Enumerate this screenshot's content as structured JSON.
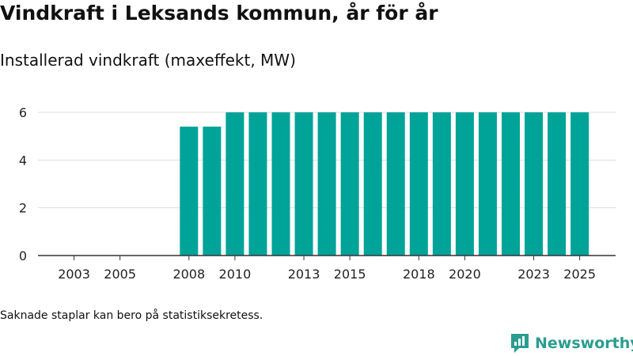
{
  "header": {
    "title": "Vindkraft i Leksands kommun, år för år",
    "subtitle": "Installerad vindkraft (maxeffekt, MW)"
  },
  "footer": {
    "note": "Saknade staplar kan bero på statistiksekretess.",
    "brand": "Newsworthy"
  },
  "colors": {
    "bar": "#00a398",
    "brand": "#2a9d90",
    "grid": "#dddddd",
    "axis": "#333333"
  },
  "chart_data": {
    "type": "bar",
    "title": "Vindkraft i Leksands kommun, år för år",
    "subtitle": "Installerad vindkraft (maxeffekt, MW)",
    "xlabel": "",
    "ylabel": "",
    "ylim": [
      0,
      6
    ],
    "yticks": [
      0,
      2,
      4,
      6
    ],
    "grid": true,
    "categories": [
      2002,
      2003,
      2004,
      2005,
      2006,
      2007,
      2008,
      2009,
      2010,
      2011,
      2012,
      2013,
      2014,
      2015,
      2016,
      2017,
      2018,
      2019,
      2020,
      2021,
      2022,
      2023,
      2024,
      2025
    ],
    "values": [
      0,
      0,
      0,
      0,
      0,
      0,
      5.4,
      5.4,
      6,
      6,
      6,
      6,
      6,
      6,
      6,
      6,
      6,
      6,
      6,
      6,
      6,
      6,
      6,
      6
    ],
    "xtick_labels": [
      "2003",
      "2005",
      "2008",
      "2010",
      "2013",
      "2015",
      "2018",
      "2020",
      "2023",
      "2025"
    ]
  }
}
